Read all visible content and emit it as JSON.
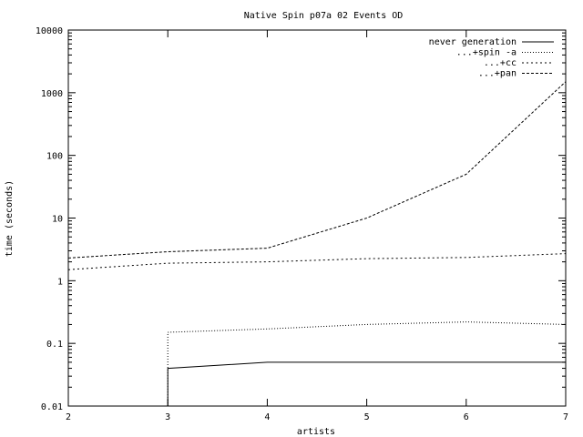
{
  "chart_data": {
    "type": "line",
    "title": "Native Spin p07a 02 Events OD",
    "xlabel": "artists",
    "ylabel": "time (seconds)",
    "xlim": [
      2,
      7
    ],
    "ylim": [
      0.01,
      10000
    ],
    "yscale": "log",
    "grid": false,
    "legend_position": "top-right",
    "xticks": [
      2,
      3,
      4,
      5,
      6,
      7
    ],
    "xtick_labels": [
      "2",
      "3",
      "4",
      "5",
      "6",
      "7"
    ],
    "yticks": [
      0.01,
      0.1,
      1,
      10,
      100,
      1000,
      10000
    ],
    "ytick_labels": [
      "0.01",
      "0.1",
      "1",
      "10",
      "100",
      "1000",
      "10000"
    ],
    "series": [
      {
        "name": "never generation",
        "dash": "solid",
        "x": [
          3,
          3,
          4,
          5,
          6,
          7
        ],
        "y": [
          0.01,
          0.04,
          0.05,
          0.05,
          0.05,
          0.05
        ]
      },
      {
        "name": "...+spin -a",
        "dash": "dotted",
        "x": [
          3,
          3,
          4,
          5,
          6,
          7
        ],
        "y": [
          0.01,
          0.15,
          0.17,
          0.2,
          0.22,
          0.2
        ]
      },
      {
        "name": "...+cc",
        "dash": "fine-dashed",
        "x": [
          2,
          3,
          4,
          5,
          6,
          7
        ],
        "y": [
          1.5,
          1.9,
          2.0,
          2.25,
          2.35,
          2.7
        ]
      },
      {
        "name": "...+pan",
        "dash": "dashed",
        "x": [
          2,
          3,
          4,
          5,
          6,
          7
        ],
        "y": [
          2.3,
          2.9,
          3.3,
          10,
          50,
          1500
        ]
      }
    ]
  }
}
